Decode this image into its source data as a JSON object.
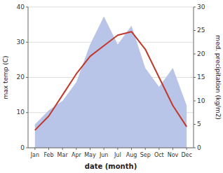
{
  "chart_data": {
    "type": "line",
    "categories": [
      "Jan",
      "Feb",
      "Mar",
      "Apr",
      "May",
      "Jun",
      "Jul",
      "Aug",
      "Sep",
      "Oct",
      "Nov",
      "Dec"
    ],
    "series": [
      {
        "type": "area",
        "axis": "y2",
        "color": "#b8c4e8",
        "values": [
          5,
          8,
          10,
          14,
          22,
          28,
          22,
          26,
          17,
          13,
          17,
          9
        ]
      },
      {
        "type": "line",
        "color": "#c0392b",
        "values": [
          5,
          9,
          15,
          21,
          26,
          29,
          32,
          33,
          28,
          20,
          12,
          6
        ]
      }
    ],
    "xlabel": "date (month)",
    "ylabel": "max temp (C)",
    "y2label": "med. precipitation (kg/m2)",
    "ylim": [
      0,
      40
    ],
    "yticks": [
      0,
      10,
      20,
      30,
      40
    ],
    "y2lim": [
      0,
      30
    ],
    "y2ticks": [
      0,
      5,
      10,
      15,
      20,
      25,
      30
    ],
    "grid": true
  }
}
